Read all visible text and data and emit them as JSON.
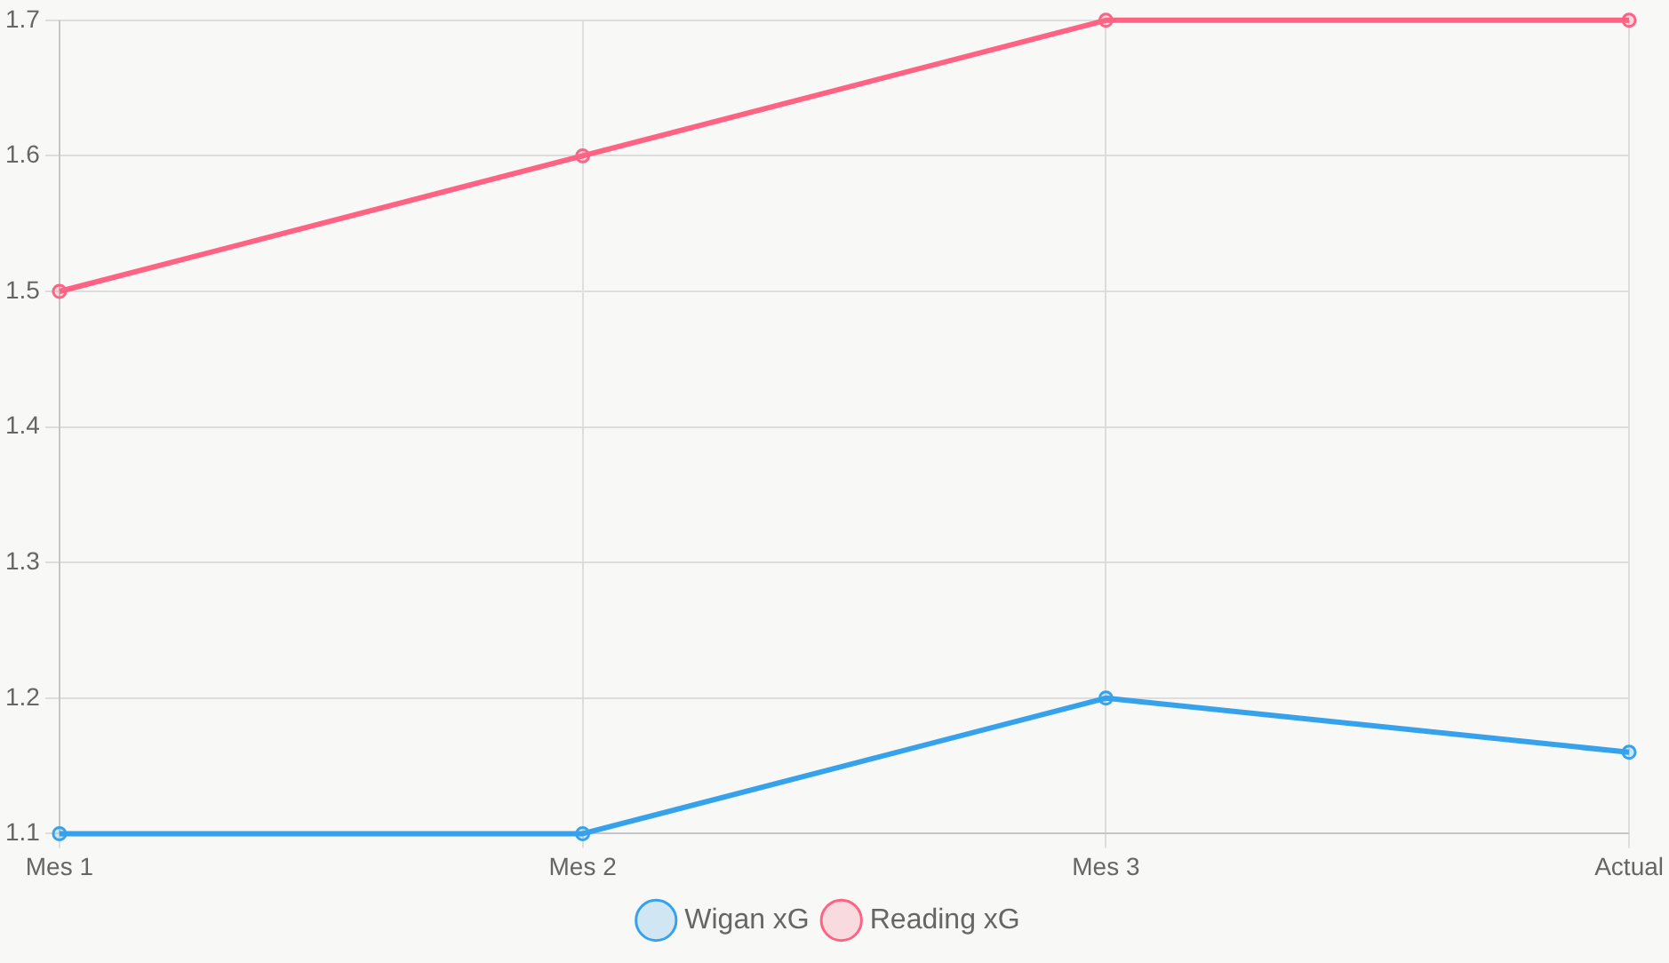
{
  "chart_data": {
    "type": "line",
    "categories": [
      "Mes 1",
      "Mes 2",
      "Mes 3",
      "Actual"
    ],
    "series": [
      {
        "name": "Wigan xG",
        "color": "#36a2eb",
        "values": [
          1.1,
          1.1,
          1.2,
          1.16
        ]
      },
      {
        "name": "Reading xG",
        "color": "#ff6384",
        "values": [
          1.5,
          1.6,
          1.7,
          1.7
        ]
      }
    ],
    "ylim": [
      1.1,
      1.7
    ],
    "yticks": [
      1.1,
      1.2,
      1.3,
      1.4,
      1.5,
      1.6,
      1.7
    ],
    "grid": true,
    "legend": "bottom",
    "marker": "circle",
    "line_style": "solid"
  }
}
